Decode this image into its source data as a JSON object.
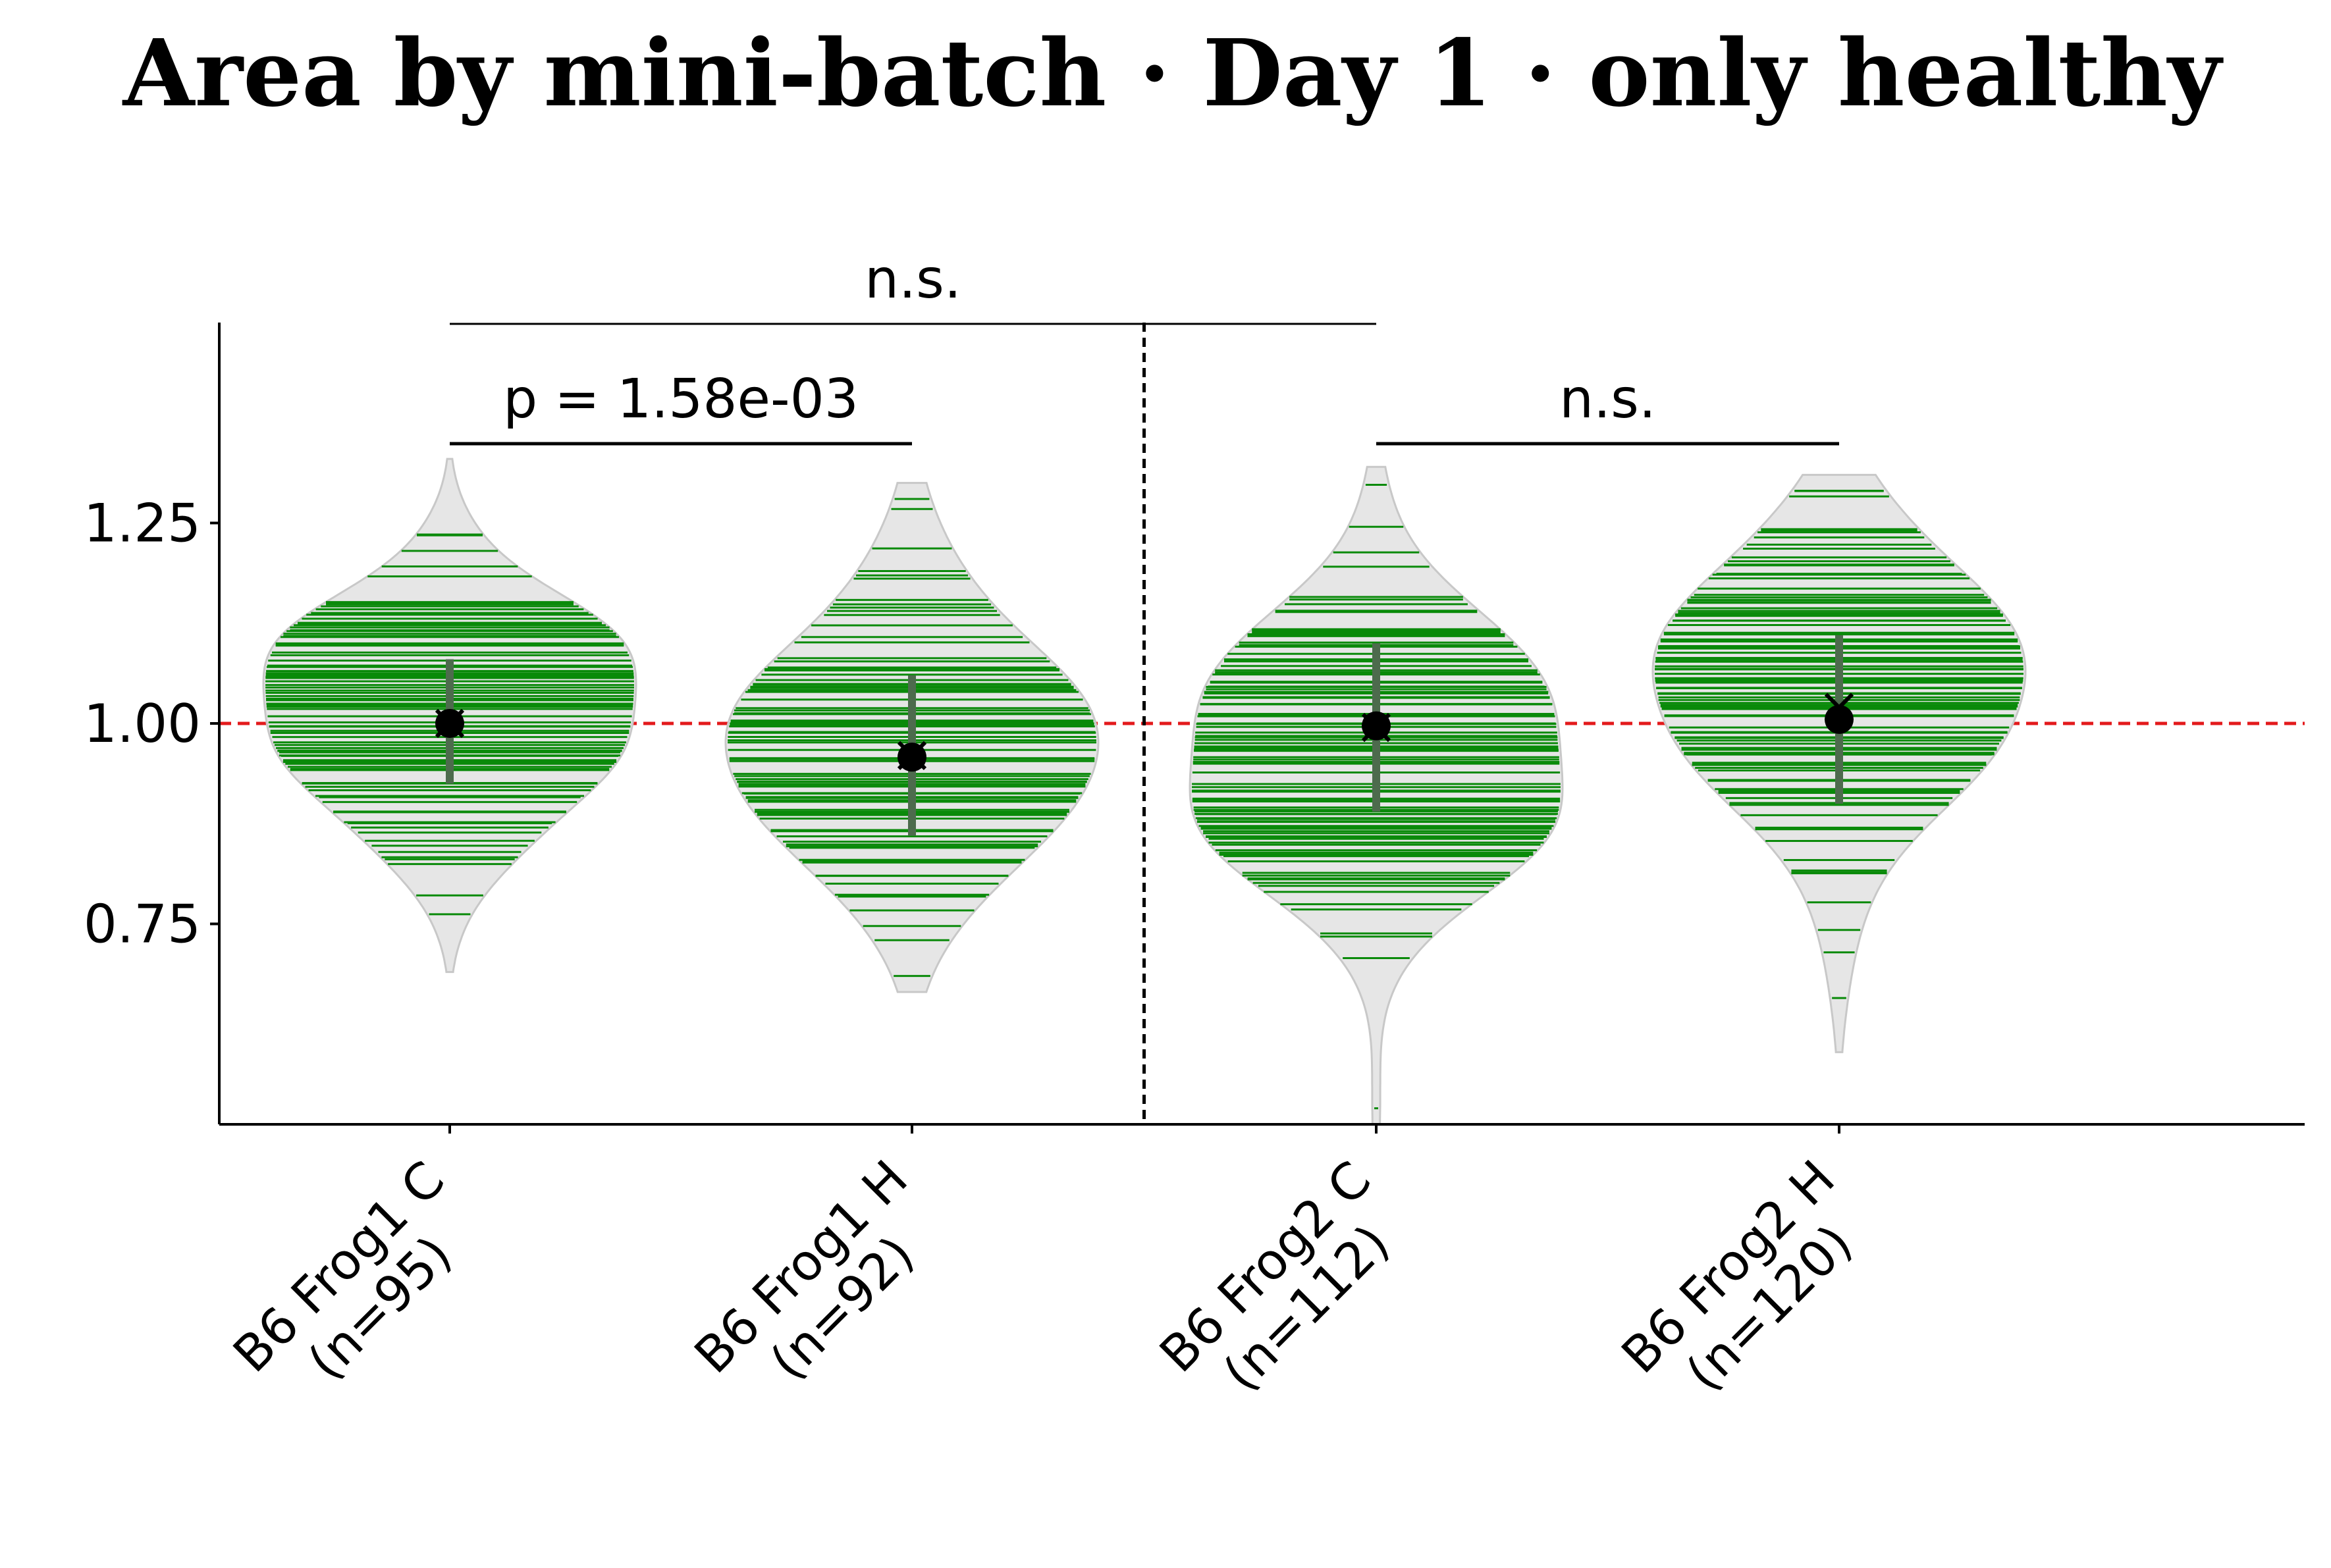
{
  "chart_data": {
    "type": "violin",
    "title": "Area by mini-batch · Day 1 · only healthy",
    "xlabel": "",
    "ylabel": "",
    "ylim": [
      0.5,
      1.5
    ],
    "yticks": [
      0.75,
      1.0,
      1.25
    ],
    "ytick_labels": [
      "0.75",
      "1.00",
      "1.25"
    ],
    "reference_line": {
      "y": 1.0,
      "color": "#e31a1c",
      "style": "dashed"
    },
    "group_separator": {
      "after_category": 2,
      "style": "dashed"
    },
    "colors": {
      "violin_fill": "#e6e6e6",
      "violin_edge": "#c8c8c8",
      "strip": "#0a8a0a",
      "iqr": "#4d6b4d",
      "marker": "#000000"
    },
    "categories": [
      {
        "line1": "B6 Frog1 C",
        "line2": "(n=95)",
        "n": 95,
        "mean": 1.0,
        "median": 1.0,
        "q1": 0.925,
        "q3": 1.08,
        "min": 0.69,
        "max": 1.33,
        "mode": 1.02
      },
      {
        "line1": "B6 Frog1 H",
        "line2": "(n=92)",
        "n": 92,
        "mean": 0.958,
        "median": 0.96,
        "q1": 0.86,
        "q3": 1.06,
        "min": 0.665,
        "max": 1.3,
        "mode": 0.96
      },
      {
        "line1": "B6 Frog2 C",
        "line2": "(n=112)",
        "n": 112,
        "mean": 0.997,
        "median": 0.995,
        "q1": 0.89,
        "q3": 1.1,
        "min": 0.5,
        "max": 1.32,
        "mode": 0.985
      },
      {
        "line1": "B6 Frog2 H",
        "line2": "(n=120)",
        "n": 120,
        "mean": 1.005,
        "median": 1.02,
        "q1": 0.9,
        "q3": 1.11,
        "min": 0.59,
        "max": 1.31,
        "mode": 1.04
      }
    ],
    "comparisons": [
      {
        "from": 0,
        "to": 2,
        "label": "n.s.",
        "level": 2
      },
      {
        "from": 0,
        "to": 1,
        "label": "p = 1.58e-03",
        "level": 1
      },
      {
        "from": 2,
        "to": 3,
        "label": "n.s.",
        "level": 1
      }
    ]
  }
}
